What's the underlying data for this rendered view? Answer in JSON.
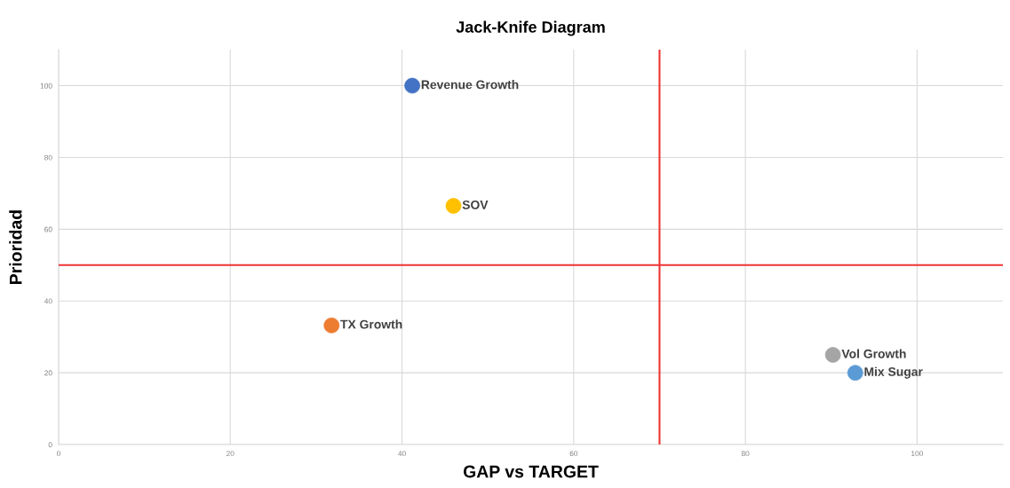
{
  "chart_data": {
    "type": "scatter",
    "title": "Jack-Knife Diagram",
    "xlabel": "GAP vs TARGET",
    "ylabel": "Prioridad",
    "series": [
      {
        "name": "Revenue Growth",
        "color": "#4472c4",
        "x": [
          41.2
        ],
        "values": [
          100
        ]
      },
      {
        "name": "SOV",
        "color": "#ffc000",
        "x": [
          46
        ],
        "values": [
          66.5
        ]
      },
      {
        "name": "TX Growth",
        "color": "#ed7d31",
        "x": [
          31.8
        ],
        "values": [
          33.2
        ]
      },
      {
        "name": "Vol Growth",
        "color": "#a5a5a5",
        "x": [
          90.2
        ],
        "values": [
          25
        ]
      },
      {
        "name": "Mix Sugar",
        "color": "#5b9bd5",
        "x": [
          92.8
        ],
        "values": [
          20
        ]
      }
    ],
    "xlim": [
      0,
      110
    ],
    "ylim": [
      0,
      110
    ],
    "xticks": [
      0,
      20,
      40,
      60,
      80,
      100
    ],
    "yticks": [
      0,
      20,
      40,
      60,
      80,
      100
    ],
    "ref_lines": [
      {
        "axis": "x",
        "value": 70,
        "color": "#ee3333"
      },
      {
        "axis": "y",
        "value": 50,
        "color": "#ee3333"
      }
    ],
    "grid": true,
    "legend": false,
    "marker": "circle"
  }
}
